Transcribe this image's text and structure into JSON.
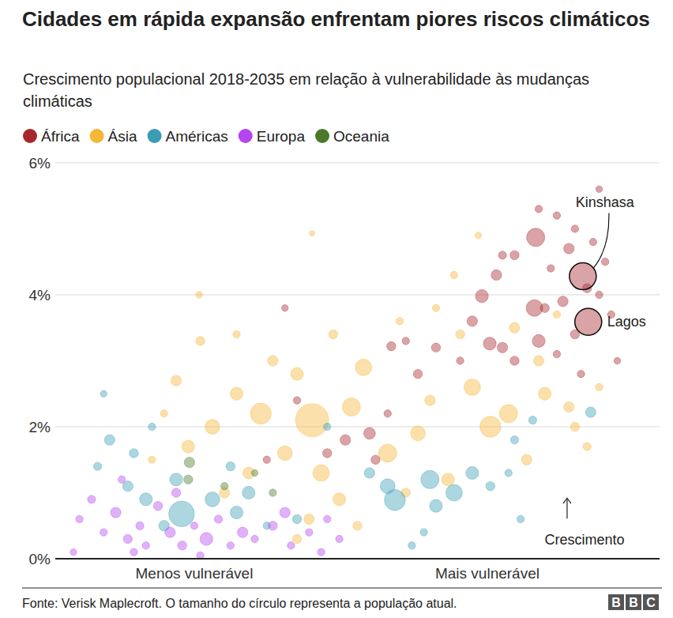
{
  "chart_data": {
    "type": "scatter",
    "title": "Cidades em rápida expansão enfrentam piores riscos climáticos",
    "subtitle": "Crescimento populacional 2018-2035 em relação à vulnerabilidade às mudanças climáticas",
    "legend": "top",
    "grid": true,
    "marker": "circle",
    "xlim": [
      0,
      10
    ],
    "xticks": [
      {
        "value": 2.3,
        "label": "Menos vulnerável"
      },
      {
        "value": 7.15,
        "label": "Mais vulnerável"
      }
    ],
    "ylim": [
      0,
      6
    ],
    "yticks": [
      {
        "value": 0,
        "label": "0%"
      },
      {
        "value": 2,
        "label": "2%"
      },
      {
        "value": 4,
        "label": "4%"
      },
      {
        "value": 6,
        "label": "6%"
      }
    ],
    "series": [
      {
        "name": "África",
        "color": "#a8272d",
        "x": [
          8.73,
          8.82,
          7.95,
          7.06,
          6.9,
          7.3,
          7.6,
          8.0,
          8.3,
          8.5,
          8.2,
          8.6,
          9.0,
          8.9,
          9.1,
          8.4,
          8.1,
          7.93,
          7.4,
          7.6,
          8.0,
          8.3,
          8.6,
          9.0,
          9.3,
          9.2,
          8.7,
          7.19,
          6.3,
          5.8,
          5.56,
          4.0,
          3.8,
          5.5,
          4.8,
          5.2,
          6.0,
          4.5,
          3.5,
          5.3,
          8.8,
          7.4,
          6.7
        ],
        "values": [
          4.28,
          3.59,
          4.87,
          3.98,
          3.6,
          4.3,
          4.6,
          5.3,
          5.2,
          4.7,
          4.4,
          5.0,
          5.6,
          4.8,
          4.5,
          3.9,
          3.8,
          3.8,
          3.2,
          3.0,
          3.3,
          3.1,
          3.4,
          4.0,
          3.0,
          3.7,
          2.8,
          3.26,
          3.2,
          3.3,
          3.22,
          2.4,
          3.8,
          2.2,
          1.8,
          1.9,
          2.8,
          1.6,
          1.5,
          1.5,
          4.1,
          4.6,
          3.0
        ],
        "size": [
          13,
          13.5,
          6,
          3,
          2,
          2,
          1.5,
          1,
          1,
          2,
          1,
          1,
          0.8,
          1,
          1,
          2,
          1.5,
          5,
          2,
          1.5,
          3,
          1,
          1.5,
          1,
          0.8,
          1,
          1,
          3,
          1.5,
          1,
          1.5,
          1,
          0.8,
          1,
          2,
          2.5,
          1.5,
          1.5,
          1,
          1.5,
          1.5,
          1.2,
          1
        ]
      },
      {
        "name": "Ásia",
        "color": "#f6b637",
        "x": [
          4.25,
          3.4,
          4.9,
          5.1,
          6.9,
          7.2,
          7.5,
          8.1,
          8.5,
          6.0,
          5.5,
          3.0,
          2.6,
          2.2,
          2.0,
          2.4,
          3.6,
          4.0,
          4.6,
          4.25,
          2.38,
          6.6,
          7.0,
          6.3,
          6.7,
          8.0,
          8.6,
          9.0,
          8.8,
          7.8,
          6.5,
          4.7,
          4.2,
          4.0,
          5.0,
          3.2,
          2.8,
          1.6,
          1.8,
          3.8,
          5.8,
          6.2,
          7.6,
          8.3,
          4.4,
          5.7,
          3.0
        ],
        "values": [
          2.1,
          2.2,
          2.3,
          2.9,
          2.6,
          2.0,
          2.2,
          2.5,
          2.3,
          1.9,
          1.6,
          2.5,
          2.0,
          1.7,
          2.7,
          3.3,
          3.0,
          2.8,
          3.4,
          4.93,
          4.0,
          4.3,
          4.9,
          3.8,
          3.4,
          3.0,
          2.0,
          2.6,
          1.7,
          1.5,
          1.2,
          0.9,
          0.6,
          0.3,
          0.5,
          1.3,
          1.0,
          1.5,
          2.2,
          1.6,
          1.0,
          2.4,
          3.5,
          3.7,
          1.3,
          3.6,
          3.4
        ],
        "size": [
          20,
          8,
          6,
          5,
          5,
          8,
          6,
          3,
          2,
          4,
          6,
          3,
          4,
          3,
          2,
          1.5,
          2,
          3,
          1.5,
          0.5,
          0.8,
          1,
          0.8,
          1,
          1.5,
          2,
          1.5,
          1,
          1.2,
          2,
          3,
          3,
          2,
          1.5,
          1.5,
          2.5,
          2,
          1,
          1,
          4,
          1.5,
          2,
          2,
          1,
          5,
          1,
          1
        ]
      },
      {
        "name": "Américas",
        "color": "#3a9db5",
        "x": [
          0.9,
          1.2,
          1.5,
          2.0,
          2.09,
          2.6,
          3.0,
          3.2,
          1.8,
          2.9,
          0.7,
          1.3,
          3.5,
          4.0,
          5.5,
          5.62,
          6.2,
          6.6,
          6.9,
          6.3,
          7.2,
          7.5,
          7.7,
          5.2,
          5.9,
          6.1,
          7.6,
          8.86,
          7.9,
          0.8,
          1.6,
          4.5
        ],
        "values": [
          1.8,
          1.1,
          0.9,
          1.2,
          0.68,
          0.9,
          0.7,
          1.0,
          0.5,
          1.4,
          1.4,
          1.6,
          0.5,
          0.6,
          1.1,
          0.89,
          1.2,
          1.0,
          1.3,
          0.8,
          1.1,
          1.3,
          0.6,
          1.3,
          0.2,
          0.4,
          1.8,
          2.22,
          2.1,
          2.5,
          2.0,
          2.0
        ],
        "size": [
          2,
          2,
          3,
          3,
          12,
          4,
          3,
          3,
          2,
          1.5,
          1.2,
          1.5,
          1,
          1.5,
          4,
          8,
          6,
          5,
          3,
          3,
          1.5,
          1,
          1,
          2,
          1,
          1,
          1.2,
          2,
          1.2,
          0.8,
          1,
          1
        ]
      },
      {
        "name": "Europa",
        "color": "#b445f0",
        "x": [
          0.4,
          0.6,
          0.8,
          1.0,
          1.2,
          1.4,
          1.5,
          1.7,
          1.9,
          2.1,
          2.3,
          2.5,
          2.7,
          2.9,
          3.1,
          3.3,
          3.6,
          3.9,
          4.2,
          4.4,
          4.7,
          1.1,
          2.0,
          0.3,
          1.3,
          2.4,
          3.8,
          4.5
        ],
        "values": [
          0.6,
          0.9,
          0.4,
          0.7,
          0.3,
          0.5,
          0.2,
          0.8,
          0.4,
          0.2,
          0.5,
          0.3,
          0.6,
          0.2,
          0.4,
          0.3,
          0.5,
          0.2,
          0.4,
          0.1,
          0.3,
          1.2,
          1.0,
          0.1,
          0.1,
          0.05,
          0.7,
          0.6
        ],
        "size": [
          1,
          1.2,
          1,
          2,
          1.5,
          1.2,
          1,
          1.5,
          2,
          1.5,
          1,
          3,
          1.2,
          1,
          2,
          1,
          1.5,
          1,
          1,
          1,
          1,
          1,
          1.5,
          0.8,
          1,
          1,
          2,
          1
        ]
      },
      {
        "name": "Oceania",
        "color": "#4b7a2a",
        "x": [
          2.22,
          2.2,
          2.8,
          3.3,
          3.6
        ],
        "values": [
          1.46,
          1.2,
          1.1,
          1.3,
          1.0
        ],
        "size": [
          2,
          1.5,
          1,
          0.8,
          1
        ]
      }
    ],
    "annotations": [
      {
        "text": "Kinshasa",
        "x": 8.73,
        "y": 4.28
      },
      {
        "text": "Lagos",
        "x": 8.82,
        "y": 3.59
      },
      {
        "text": "Crescimento",
        "x": 8.47,
        "y": 0.92
      }
    ],
    "source": "Fonte: Verisk Maplecroft. O tamanho do círculo representa a população atual.",
    "logo": "BBC"
  }
}
